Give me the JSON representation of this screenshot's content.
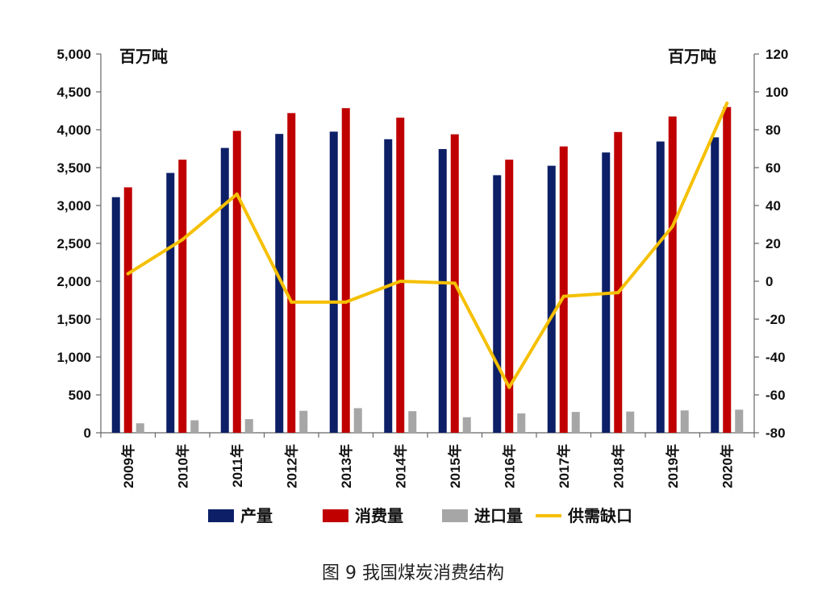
{
  "chart_data": {
    "type": "bar",
    "title": "",
    "caption": "图 9  我国煤炭消费结构",
    "unit_left": "百万吨",
    "unit_right": "百万吨",
    "categories": [
      "2009年",
      "2010年",
      "2011年",
      "2012年",
      "2013年",
      "2014年",
      "2015年",
      "2016年",
      "2017年",
      "2018年",
      "2019年",
      "2020年"
    ],
    "y_left": {
      "min": 0,
      "max": 5000,
      "step": 500,
      "ticks": [
        "0",
        "500",
        "1,000",
        "1,500",
        "2,000",
        "2,500",
        "3,000",
        "3,500",
        "4,000",
        "4,500",
        "5,000"
      ]
    },
    "y_right": {
      "min": -80,
      "max": 120,
      "step": 20,
      "ticks": [
        "-80",
        "-60",
        "-40",
        "-20",
        "0",
        "20",
        "40",
        "60",
        "80",
        "100",
        "120"
      ]
    },
    "series": [
      {
        "name": "产量",
        "type": "bar",
        "axis": "left",
        "color": "#0d1f66",
        "values": [
          3110,
          3430,
          3760,
          3945,
          3975,
          3875,
          3745,
          3400,
          3525,
          3700,
          3845,
          3900
        ]
      },
      {
        "name": "消费量",
        "type": "bar",
        "axis": "left",
        "color": "#c00000",
        "values": [
          3240,
          3605,
          3985,
          4220,
          4285,
          4160,
          3940,
          3605,
          3780,
          3970,
          4175,
          4300
        ]
      },
      {
        "name": "进口量",
        "type": "bar",
        "axis": "left",
        "color": "#a6a6a6",
        "values": [
          125,
          165,
          180,
          290,
          325,
          285,
          205,
          255,
          275,
          280,
          295,
          305
        ]
      },
      {
        "name": "供需缺口",
        "type": "line",
        "axis": "right",
        "color": "#f5c000",
        "values": [
          4,
          22,
          46,
          -11,
          -11,
          0,
          -1,
          -56,
          -8,
          -6,
          29,
          94
        ]
      }
    ],
    "legend_position": "bottom",
    "grid": false
  }
}
